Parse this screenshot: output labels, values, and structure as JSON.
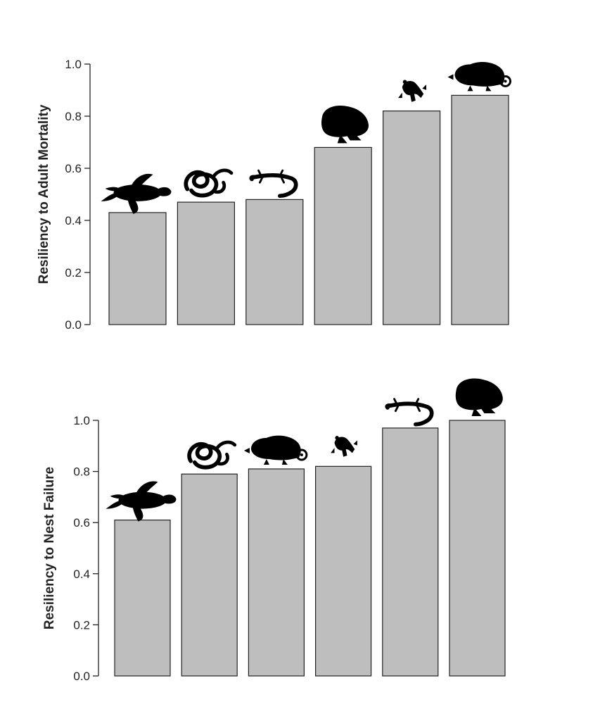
{
  "chart_data": [
    {
      "type": "bar",
      "ylabel": "Resiliency to Adult Mortality",
      "ylim": [
        0,
        1
      ],
      "yticks": [
        "0.0",
        "0.2",
        "0.4",
        "0.6",
        "0.8",
        "1.0"
      ],
      "categories": [
        "sea-turtle",
        "snake",
        "salamander",
        "toad",
        "frog",
        "chameleon"
      ],
      "values": [
        0.43,
        0.47,
        0.48,
        0.68,
        0.82,
        0.88
      ],
      "bar_color": "#bebebe",
      "icons": [
        "turtle-icon",
        "snake-icon",
        "salamander-icon",
        "toad-icon",
        "frog-icon",
        "chameleon-icon"
      ]
    },
    {
      "type": "bar",
      "ylabel": "Resiliency to Nest Failure",
      "ylim": [
        0,
        1
      ],
      "yticks": [
        "0.0",
        "0.2",
        "0.4",
        "0.6",
        "0.8",
        "1.0"
      ],
      "categories": [
        "sea-turtle",
        "snake",
        "chameleon",
        "frog",
        "salamander",
        "toad"
      ],
      "values": [
        0.61,
        0.79,
        0.81,
        0.82,
        0.97,
        1.0
      ],
      "bar_color": "#bebebe",
      "icons": [
        "turtle-icon",
        "snake-icon",
        "chameleon-icon",
        "frog-icon",
        "salamander-icon",
        "toad-icon"
      ]
    }
  ]
}
